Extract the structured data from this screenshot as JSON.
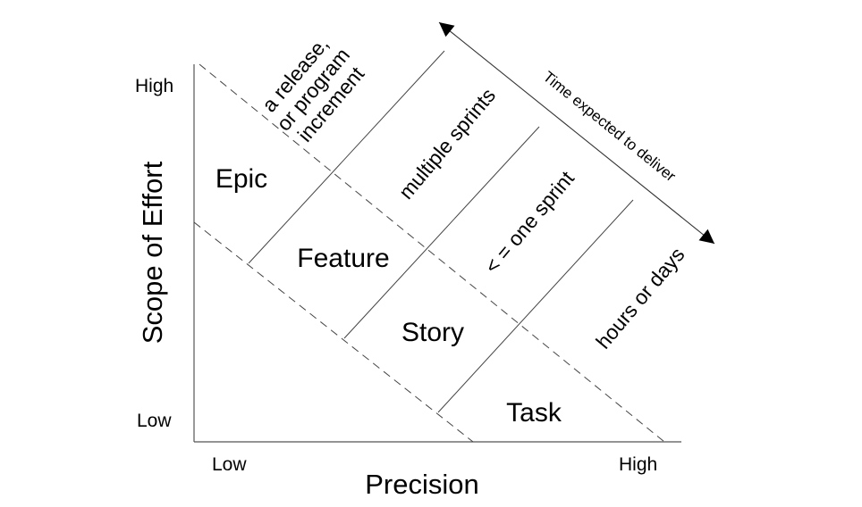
{
  "axes": {
    "y_label": "Scope of Effort",
    "y_high": "High",
    "y_low": "Low",
    "x_label": "Precision",
    "x_low": "Low",
    "x_high": "High"
  },
  "levels": [
    "Epic",
    "Feature",
    "Story",
    "Task"
  ],
  "durations": {
    "release": [
      "a release,",
      "or program",
      "increment"
    ],
    "feature": "multiple sprints",
    "story": "< = one sprint",
    "task": "hours or days"
  },
  "arrow_label": "Time expected to deliver"
}
